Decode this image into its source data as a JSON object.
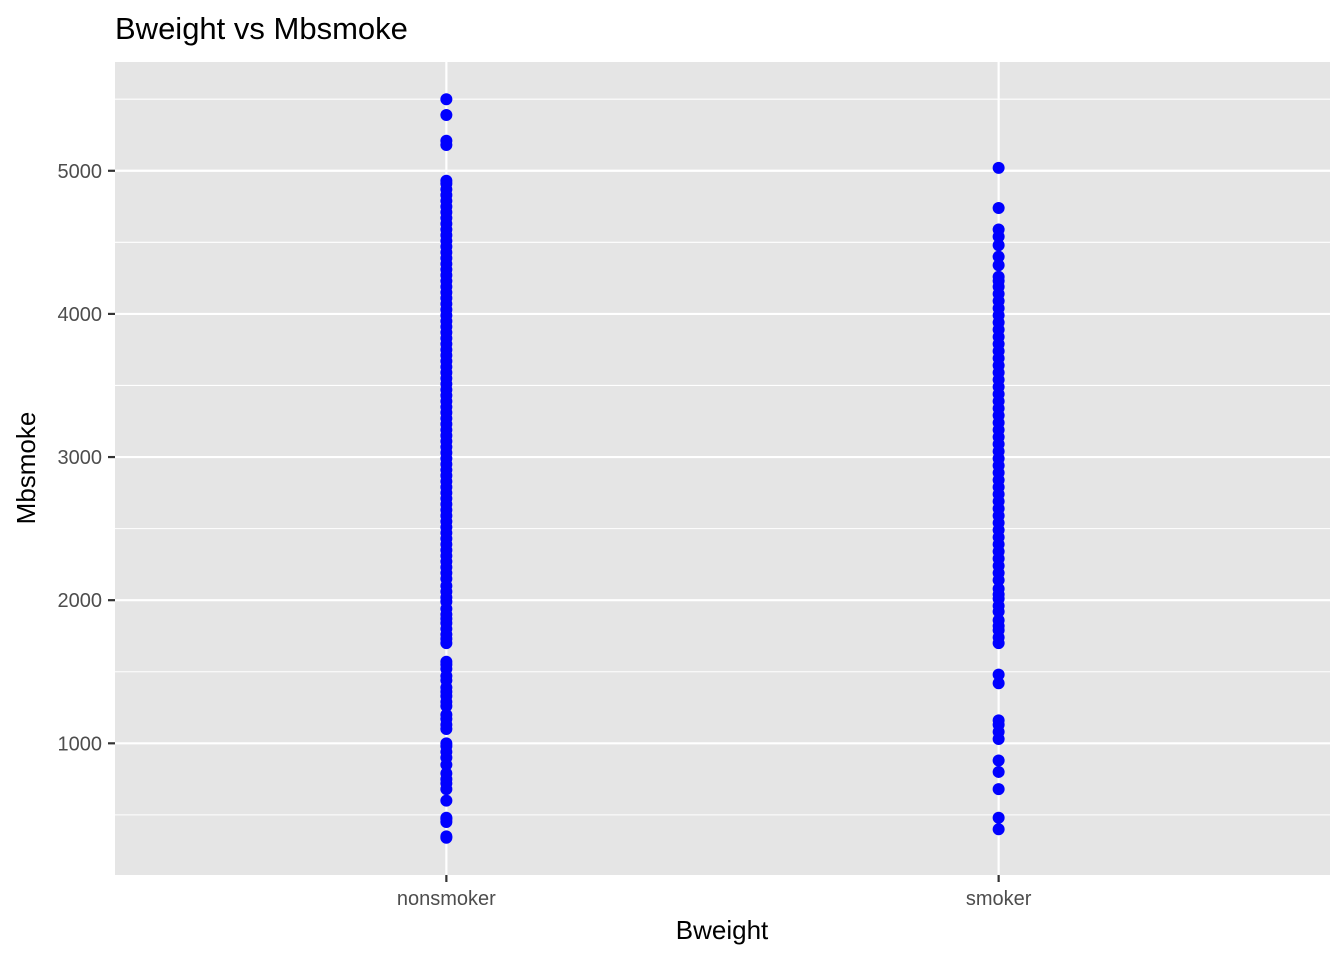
{
  "chart_data": {
    "type": "scatter",
    "title": "Bweight vs Mbsmoke",
    "xlabel": "Bweight",
    "ylabel": "Mbsmoke",
    "categories": [
      "nonsmoker",
      "smoker"
    ],
    "ylim": [
      80,
      5760
    ],
    "y_ticks": [
      1000,
      2000,
      3000,
      4000,
      5000
    ],
    "y_tick_labels": [
      "1000",
      "2000",
      "3000",
      "4000",
      "5000"
    ],
    "grid": true,
    "legend": "none",
    "point_color": "#0000ff",
    "panel_color": "#e5e5e5",
    "grid_color": "#ffffff",
    "series": [
      {
        "category": "nonsmoker",
        "values": [
          340,
          350,
          450,
          470,
          480,
          600,
          680,
          720,
          750,
          790,
          850,
          900,
          940,
          980,
          1000,
          1100,
          1130,
          1170,
          1200,
          1260,
          1290,
          1330,
          1360,
          1390,
          1440,
          1470,
          1520,
          1550,
          1570,
          1700,
          1730,
          1760,
          1800,
          1840,
          1870,
          1900,
          1940,
          1990,
          2020,
          2060,
          2100,
          2150,
          2190,
          2230,
          2270,
          2310,
          2350,
          2390,
          2430,
          2470,
          2510,
          2550,
          2590,
          2630,
          2670,
          2710,
          2750,
          2790,
          2830,
          2870,
          2910,
          2950,
          2990,
          3030,
          3070,
          3110,
          3150,
          3190,
          3230,
          3270,
          3310,
          3350,
          3390,
          3430,
          3470,
          3510,
          3550,
          3590,
          3630,
          3670,
          3710,
          3750,
          3790,
          3830,
          3870,
          3910,
          3950,
          3990,
          4030,
          4070,
          4110,
          4150,
          4190,
          4230,
          4270,
          4310,
          4350,
          4390,
          4430,
          4470,
          4510,
          4550,
          4590,
          4630,
          4670,
          4710,
          4750,
          4790,
          4830,
          4870,
          4910,
          4930,
          5180,
          5210,
          5390,
          5500
        ]
      },
      {
        "category": "smoker",
        "values": [
          400,
          480,
          680,
          800,
          880,
          1030,
          1080,
          1130,
          1160,
          1420,
          1480,
          1700,
          1740,
          1790,
          1820,
          1860,
          1920,
          1960,
          2010,
          2040,
          2080,
          2140,
          2190,
          2240,
          2290,
          2340,
          2390,
          2440,
          2490,
          2540,
          2590,
          2640,
          2690,
          2740,
          2790,
          2840,
          2890,
          2940,
          2990,
          3040,
          3090,
          3140,
          3190,
          3240,
          3290,
          3340,
          3390,
          3440,
          3490,
          3540,
          3590,
          3640,
          3690,
          3740,
          3790,
          3840,
          3890,
          3940,
          3990,
          4040,
          4090,
          4140,
          4190,
          4230,
          4260,
          4340,
          4400,
          4480,
          4540,
          4590,
          4740,
          5020
        ]
      }
    ]
  }
}
